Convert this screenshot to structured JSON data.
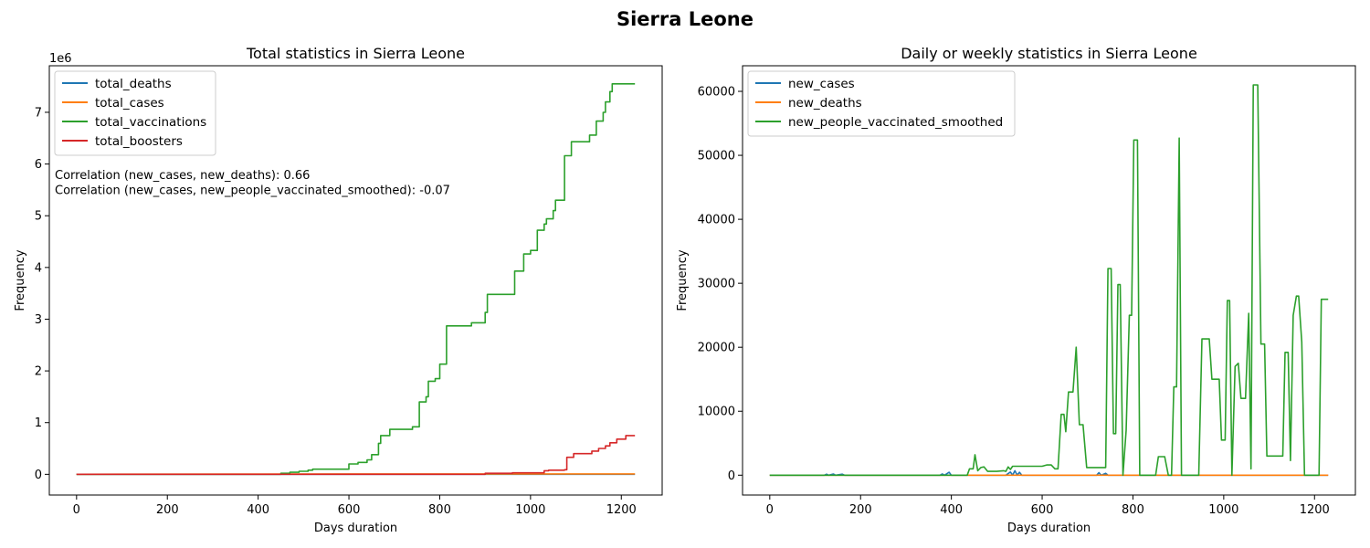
{
  "figure": {
    "title": "Sierra Leone"
  },
  "chart_data": [
    {
      "type": "line",
      "title": "Total statistics in Sierra Leone",
      "xlabel": "Days duration",
      "ylabel": "Frequency",
      "y_offset_label": "1e6",
      "y_scale_factor": 1000000,
      "xlim": [
        -60,
        1290
      ],
      "ylim": [
        -400000,
        7900000
      ],
      "xticks": [
        0,
        200,
        400,
        600,
        800,
        1000,
        1200
      ],
      "yticks": [
        0,
        1,
        2,
        3,
        4,
        5,
        6,
        7
      ],
      "legend_position": "top-left",
      "annotations": [
        "Correlation (new_cases, new_deaths): 0.66",
        "Correlation (new_cases, new_people_vaccinated_smoothed): -0.07"
      ],
      "series": [
        {
          "name": "total_deaths",
          "color": "#1f77b4",
          "step": false,
          "points": [
            [
              0,
              0
            ],
            [
              1230,
              0
            ]
          ]
        },
        {
          "name": "total_cases",
          "color": "#ff7f0e",
          "step": false,
          "points": [
            [
              0,
              0
            ],
            [
              400,
              7000
            ],
            [
              800,
              7600
            ],
            [
              1230,
              7800
            ]
          ]
        },
        {
          "name": "total_vaccinations",
          "color": "#2ca02c",
          "step": true,
          "points": [
            [
              0,
              0
            ],
            [
              445,
              0
            ],
            [
              450,
              20000
            ],
            [
              470,
              40000
            ],
            [
              490,
              60000
            ],
            [
              510,
              80000
            ],
            [
              520,
              100000
            ],
            [
              600,
              200000
            ],
            [
              620,
              230000
            ],
            [
              640,
              280000
            ],
            [
              650,
              380000
            ],
            [
              665,
              600000
            ],
            [
              670,
              750000
            ],
            [
              690,
              870000
            ],
            [
              740,
              920000
            ],
            [
              755,
              1400000
            ],
            [
              770,
              1500000
            ],
            [
              775,
              1800000
            ],
            [
              790,
              1850000
            ],
            [
              800,
              2130000
            ],
            [
              815,
              2870000
            ],
            [
              870,
              2930000
            ],
            [
              900,
              3130000
            ],
            [
              905,
              3480000
            ],
            [
              965,
              3930000
            ],
            [
              985,
              4260000
            ],
            [
              1000,
              4330000
            ],
            [
              1015,
              4720000
            ],
            [
              1030,
              4840000
            ],
            [
              1035,
              4940000
            ],
            [
              1050,
              5100000
            ],
            [
              1055,
              5300000
            ],
            [
              1075,
              6160000
            ],
            [
              1090,
              6430000
            ],
            [
              1130,
              6560000
            ],
            [
              1145,
              6830000
            ],
            [
              1160,
              7000000
            ],
            [
              1165,
              7200000
            ],
            [
              1175,
              7400000
            ],
            [
              1180,
              7550000
            ],
            [
              1230,
              7550000
            ]
          ]
        },
        {
          "name": "total_boosters",
          "color": "#d62728",
          "step": true,
          "points": [
            [
              0,
              0
            ],
            [
              800,
              0
            ],
            [
              900,
              20000
            ],
            [
              960,
              30000
            ],
            [
              1030,
              70000
            ],
            [
              1040,
              80000
            ],
            [
              1075,
              90000
            ],
            [
              1080,
              330000
            ],
            [
              1095,
              400000
            ],
            [
              1135,
              450000
            ],
            [
              1150,
              500000
            ],
            [
              1165,
              550000
            ],
            [
              1175,
              610000
            ],
            [
              1190,
              680000
            ],
            [
              1210,
              750000
            ],
            [
              1230,
              750000
            ]
          ]
        }
      ]
    },
    {
      "type": "line",
      "title": "Daily or weekly statistics in Sierra Leone",
      "xlabel": "Days duration",
      "ylabel": "Frequency",
      "xlim": [
        -60,
        1290
      ],
      "ylim": [
        -3100,
        64000
      ],
      "xticks": [
        0,
        200,
        400,
        600,
        800,
        1000,
        1200
      ],
      "yticks": [
        0,
        10000,
        20000,
        30000,
        40000,
        50000,
        60000
      ],
      "legend_position": "top-left",
      "series": [
        {
          "name": "new_cases",
          "color": "#1f77b4",
          "step": false,
          "points": [
            [
              0,
              0
            ],
            [
              120,
              0
            ],
            [
              125,
              150
            ],
            [
              130,
              0
            ],
            [
              140,
              180
            ],
            [
              145,
              0
            ],
            [
              160,
              150
            ],
            [
              165,
              0
            ],
            [
              375,
              0
            ],
            [
              380,
              200
            ],
            [
              385,
              0
            ],
            [
              395,
              450
            ],
            [
              400,
              0
            ],
            [
              520,
              0
            ],
            [
              530,
              500
            ],
            [
              535,
              0
            ],
            [
              540,
              700
            ],
            [
              545,
              0
            ],
            [
              550,
              450
            ],
            [
              555,
              0
            ],
            [
              720,
              0
            ],
            [
              725,
              400
            ],
            [
              730,
              0
            ],
            [
              740,
              300
            ],
            [
              745,
              0
            ],
            [
              1230,
              0
            ]
          ]
        },
        {
          "name": "new_deaths",
          "color": "#ff7f0e",
          "step": false,
          "points": [
            [
              0,
              0
            ],
            [
              1230,
              0
            ]
          ]
        },
        {
          "name": "new_people_vaccinated_smoothed",
          "color": "#2ca02c",
          "step": false,
          "points": [
            [
              0,
              0
            ],
            [
              435,
              0
            ],
            [
              440,
              1000
            ],
            [
              448,
              1000
            ],
            [
              452,
              3200
            ],
            [
              458,
              700
            ],
            [
              465,
              1200
            ],
            [
              472,
              1300
            ],
            [
              480,
              600
            ],
            [
              500,
              600
            ],
            [
              515,
              700
            ],
            [
              520,
              600
            ],
            [
              525,
              1300
            ],
            [
              530,
              900
            ],
            [
              535,
              1400
            ],
            [
              560,
              1400
            ],
            [
              600,
              1400
            ],
            [
              610,
              1600
            ],
            [
              620,
              1600
            ],
            [
              628,
              1000
            ],
            [
              635,
              1000
            ],
            [
              642,
              9500
            ],
            [
              648,
              9500
            ],
            [
              652,
              6800
            ],
            [
              658,
              13000
            ],
            [
              668,
              13000
            ],
            [
              675,
              20000
            ],
            [
              682,
              7900
            ],
            [
              690,
              7900
            ],
            [
              698,
              1200
            ],
            [
              740,
              1200
            ],
            [
              745,
              32300
            ],
            [
              752,
              32300
            ],
            [
              757,
              6500
            ],
            [
              762,
              6500
            ],
            [
              767,
              29800
            ],
            [
              772,
              29800
            ],
            [
              778,
              0
            ],
            [
              785,
              7000
            ],
            [
              792,
              25000
            ],
            [
              797,
              25000
            ],
            [
              802,
              52400
            ],
            [
              810,
              52400
            ],
            [
              815,
              0
            ],
            [
              850,
              0
            ],
            [
              856,
              2900
            ],
            [
              870,
              2900
            ],
            [
              878,
              0
            ],
            [
              885,
              0
            ],
            [
              890,
              13800
            ],
            [
              896,
              13800
            ],
            [
              902,
              52700
            ],
            [
              907,
              0
            ],
            [
              945,
              0
            ],
            [
              952,
              21300
            ],
            [
              968,
              21300
            ],
            [
              974,
              15000
            ],
            [
              990,
              15000
            ],
            [
              995,
              5500
            ],
            [
              1003,
              5500
            ],
            [
              1008,
              27300
            ],
            [
              1013,
              27300
            ],
            [
              1018,
              0
            ],
            [
              1025,
              17000
            ],
            [
              1032,
              17500
            ],
            [
              1038,
              12000
            ],
            [
              1048,
              12000
            ],
            [
              1055,
              25300
            ],
            [
              1060,
              1000
            ],
            [
              1065,
              61000
            ],
            [
              1075,
              61000
            ],
            [
              1082,
              20500
            ],
            [
              1090,
              20500
            ],
            [
              1095,
              3000
            ],
            [
              1130,
              3000
            ],
            [
              1135,
              19200
            ],
            [
              1142,
              19200
            ],
            [
              1147,
              2300
            ],
            [
              1153,
              25000
            ],
            [
              1160,
              28000
            ],
            [
              1165,
              28000
            ],
            [
              1172,
              20800
            ],
            [
              1178,
              0
            ],
            [
              1210,
              0
            ],
            [
              1215,
              27500
            ],
            [
              1230,
              27500
            ]
          ]
        }
      ]
    }
  ]
}
